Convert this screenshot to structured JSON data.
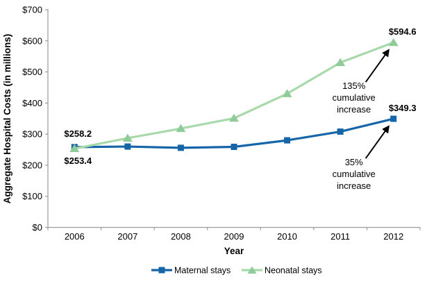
{
  "chart_data": {
    "type": "line",
    "title": "",
    "xlabel": "Year",
    "ylabel": "Aggregate Hospital Costs (in millions)",
    "categories": [
      "2006",
      "2007",
      "2008",
      "2009",
      "2010",
      "2011",
      "2012"
    ],
    "ylim": [
      0,
      700
    ],
    "ytick_step": 100,
    "ytick_prefix": "$",
    "grid": false,
    "legend_position": "bottom",
    "axis_color": "#9b9b9b",
    "text_color": "#000000",
    "annotation_arrow_color": "#000000",
    "series": [
      {
        "name": "Maternal stays",
        "marker": "square",
        "color": "#1565a8",
        "marker_color": "#1565a8",
        "values": [
          258.2,
          260,
          256,
          259,
          280,
          308,
          349.3
        ]
      },
      {
        "name": "Neonatal stays",
        "marker": "triangle",
        "color": "#a8d9ab",
        "marker_color": "#90cc99",
        "values": [
          253.4,
          287,
          318,
          351,
          430,
          530,
          594.6
        ]
      }
    ],
    "point_labels": [
      {
        "text": "$258.2",
        "series": 0,
        "index": 0,
        "position": "above"
      },
      {
        "text": "$253.4",
        "series": 1,
        "index": 0,
        "position": "below"
      },
      {
        "text": "$594.6",
        "series": 1,
        "index": 6,
        "position": "above-right"
      },
      {
        "text": "$349.3",
        "series": 0,
        "index": 6,
        "position": "above-right"
      }
    ],
    "annotations": [
      {
        "lines": [
          "135%",
          "cumulative",
          "increase"
        ],
        "text": "135% cumulative increase",
        "target": {
          "series": 1,
          "index": 6
        }
      },
      {
        "lines": [
          "35%",
          "cumulative",
          "increase"
        ],
        "text": "35% cumulative increase",
        "target": {
          "series": 0,
          "index": 6
        }
      }
    ]
  },
  "legend": {
    "items": [
      {
        "label": "Maternal stays"
      },
      {
        "label": "Neonatal stays"
      }
    ]
  }
}
